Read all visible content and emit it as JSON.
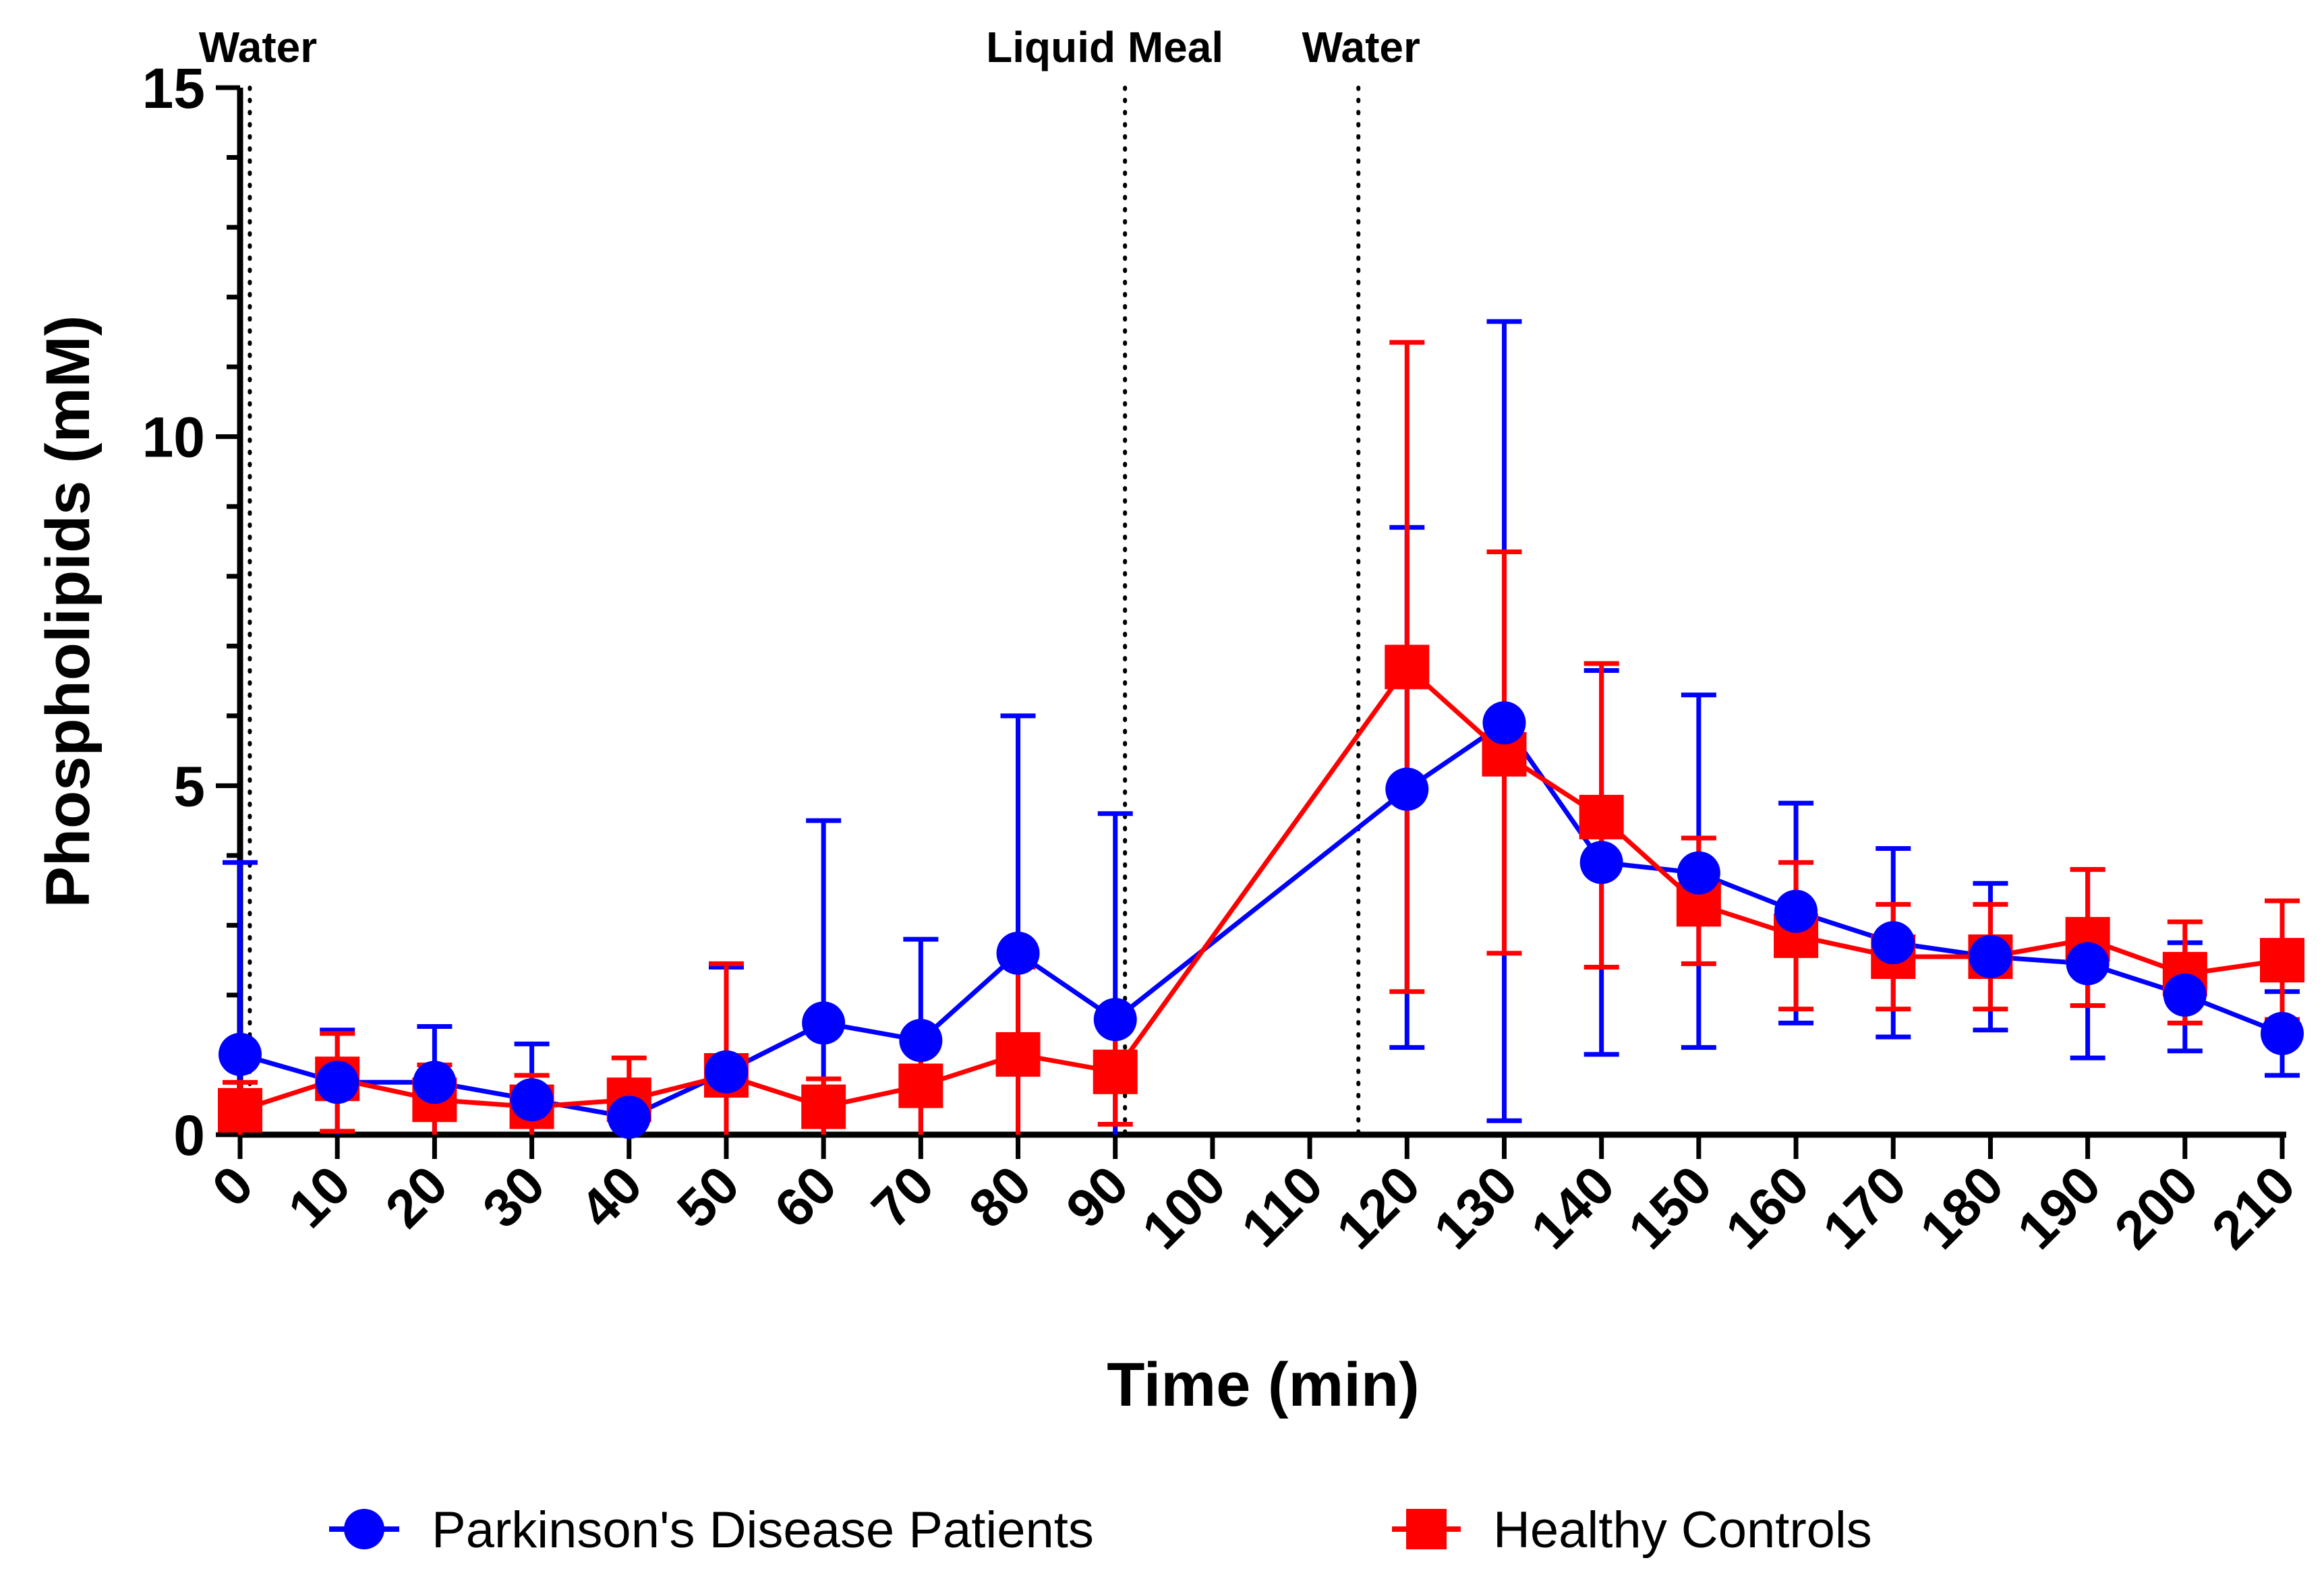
{
  "chart_data": {
    "type": "line",
    "xlabel": "Time (min)",
    "ylabel": "Phospholipids (mM)",
    "xlim": [
      0,
      210
    ],
    "ylim": [
      0,
      15
    ],
    "x_ticks": [
      "0",
      "10",
      "20",
      "30",
      "40",
      "50",
      "60",
      "70",
      "80",
      "90",
      "100",
      "110",
      "120",
      "130",
      "140",
      "150",
      "160",
      "170",
      "180",
      "190",
      "200",
      "210"
    ],
    "y_ticks": [
      "0",
      "5",
      "10",
      "15"
    ],
    "grid": false,
    "legend_position": "bottom",
    "annotations": [
      {
        "text": "Water",
        "x": 1
      },
      {
        "text": "Liquid Meal",
        "x": 91
      },
      {
        "text": "Water",
        "x": 115
      }
    ],
    "series": [
      {
        "name": "Parkinson's Disease Patients",
        "color": "#0000ff",
        "marker": "circle",
        "points": [
          {
            "x": 0,
            "y": 1.15,
            "lo": 0.0,
            "hi": 3.9
          },
          {
            "x": 10,
            "y": 0.75,
            "lo": 0.0,
            "hi": 1.5
          },
          {
            "x": 20,
            "y": 0.75,
            "lo": 0.0,
            "hi": 1.55
          },
          {
            "x": 30,
            "y": 0.5,
            "lo": 0.0,
            "hi": 1.3
          },
          {
            "x": 40,
            "y": 0.25,
            "lo": 0.0,
            "hi": 0.5
          },
          {
            "x": 50,
            "y": 0.9,
            "lo": 0.0,
            "hi": 2.4
          },
          {
            "x": 60,
            "y": 1.6,
            "lo": 0.0,
            "hi": 4.5
          },
          {
            "x": 70,
            "y": 1.35,
            "lo": 0.0,
            "hi": 2.8
          },
          {
            "x": 80,
            "y": 2.6,
            "lo": 0.0,
            "hi": 6.0
          },
          {
            "x": 90,
            "y": 1.65,
            "lo": 0.0,
            "hi": 4.6
          },
          {
            "x": 120,
            "y": 4.95,
            "lo": 1.25,
            "hi": 8.7
          },
          {
            "x": 130,
            "y": 5.9,
            "lo": 0.2,
            "hi": 11.65
          },
          {
            "x": 140,
            "y": 3.9,
            "lo": 1.15,
            "hi": 6.65
          },
          {
            "x": 150,
            "y": 3.75,
            "lo": 1.25,
            "hi": 6.3
          },
          {
            "x": 160,
            "y": 3.2,
            "lo": 1.6,
            "hi": 4.75
          },
          {
            "x": 170,
            "y": 2.75,
            "lo": 1.4,
            "hi": 4.1
          },
          {
            "x": 180,
            "y": 2.55,
            "lo": 1.5,
            "hi": 3.6
          },
          {
            "x": 190,
            "y": 2.45,
            "lo": 1.1,
            "hi": 3.8
          },
          {
            "x": 200,
            "y": 2.0,
            "lo": 1.2,
            "hi": 2.75
          },
          {
            "x": 210,
            "y": 1.45,
            "lo": 0.85,
            "hi": 2.05
          }
        ]
      },
      {
        "name": "Healthy Controls",
        "color": "#ff0000",
        "marker": "square",
        "points": [
          {
            "x": 0,
            "y": 0.35,
            "lo": 0.0,
            "hi": 0.75
          },
          {
            "x": 10,
            "y": 0.8,
            "lo": 0.05,
            "hi": 1.45
          },
          {
            "x": 20,
            "y": 0.5,
            "lo": 0.0,
            "hi": 1.0
          },
          {
            "x": 30,
            "y": 0.4,
            "lo": 0.0,
            "hi": 0.85
          },
          {
            "x": 40,
            "y": 0.5,
            "lo": 0.0,
            "hi": 1.1
          },
          {
            "x": 50,
            "y": 0.85,
            "lo": 0.0,
            "hi": 2.45
          },
          {
            "x": 60,
            "y": 0.4,
            "lo": 0.0,
            "hi": 0.8
          },
          {
            "x": 70,
            "y": 0.7,
            "lo": 0.0,
            "hi": 1.4
          },
          {
            "x": 80,
            "y": 1.15,
            "lo": 0.0,
            "hi": 2.4
          },
          {
            "x": 90,
            "y": 0.9,
            "lo": 0.15,
            "hi": 1.6
          },
          {
            "x": 120,
            "y": 6.7,
            "lo": 2.05,
            "hi": 11.35
          },
          {
            "x": 130,
            "y": 5.45,
            "lo": 2.6,
            "hi": 8.35
          },
          {
            "x": 140,
            "y": 4.55,
            "lo": 2.4,
            "hi": 6.75
          },
          {
            "x": 150,
            "y": 3.3,
            "lo": 2.45,
            "hi": 4.25
          },
          {
            "x": 160,
            "y": 2.85,
            "lo": 1.8,
            "hi": 3.9
          },
          {
            "x": 170,
            "y": 2.55,
            "lo": 1.8,
            "hi": 3.3
          },
          {
            "x": 180,
            "y": 2.55,
            "lo": 1.8,
            "hi": 3.3
          },
          {
            "x": 190,
            "y": 2.8,
            "lo": 1.85,
            "hi": 3.8
          },
          {
            "x": 200,
            "y": 2.3,
            "lo": 1.6,
            "hi": 3.05
          },
          {
            "x": 210,
            "y": 2.5,
            "lo": 1.65,
            "hi": 3.35
          }
        ]
      }
    ]
  }
}
